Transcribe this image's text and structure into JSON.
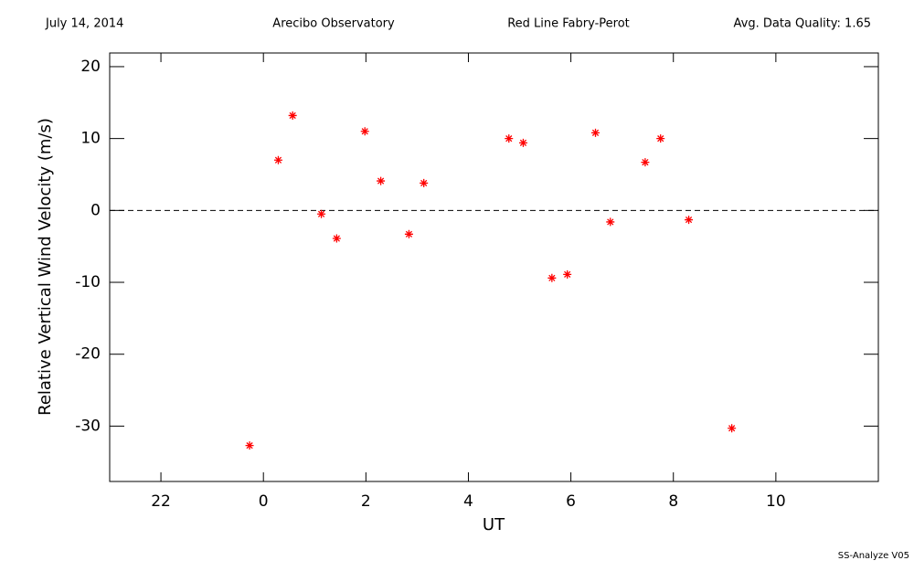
{
  "chart_data": {
    "type": "scatter",
    "header": [
      "July 14, 2014",
      "Arecibo Observatory",
      "Red Line Fabry-Perot",
      "Avg. Data Quality: 1.65"
    ],
    "footer": "SS-Analyze V05",
    "xlabel": "UT",
    "ylabel": "Relative Vertical Wind Velocity (m/s)",
    "xlim": [
      -3,
      12
    ],
    "ylim": [
      -37.7,
      21.9
    ],
    "xticks": [
      {
        "value": -2,
        "label": "22"
      },
      0,
      2,
      4,
      6,
      8,
      10
    ],
    "yticks": [
      -30,
      -20,
      -10,
      0,
      10,
      20
    ],
    "zero_line": true,
    "series": [
      {
        "color": "#ff0000",
        "x": [
          -0.27,
          0.29,
          0.57,
          1.13,
          1.43,
          1.98,
          2.29,
          2.84,
          3.13,
          4.79,
          5.07,
          5.63,
          5.93,
          6.48,
          6.77,
          7.45,
          7.75,
          8.3,
          9.14
        ],
        "values": [
          -32.7,
          7.0,
          13.2,
          -0.5,
          -3.9,
          11.0,
          4.1,
          -3.3,
          3.8,
          10.0,
          9.4,
          -9.4,
          -8.9,
          10.8,
          -1.6,
          6.7,
          10.0,
          -1.3,
          -30.3
        ]
      }
    ]
  }
}
